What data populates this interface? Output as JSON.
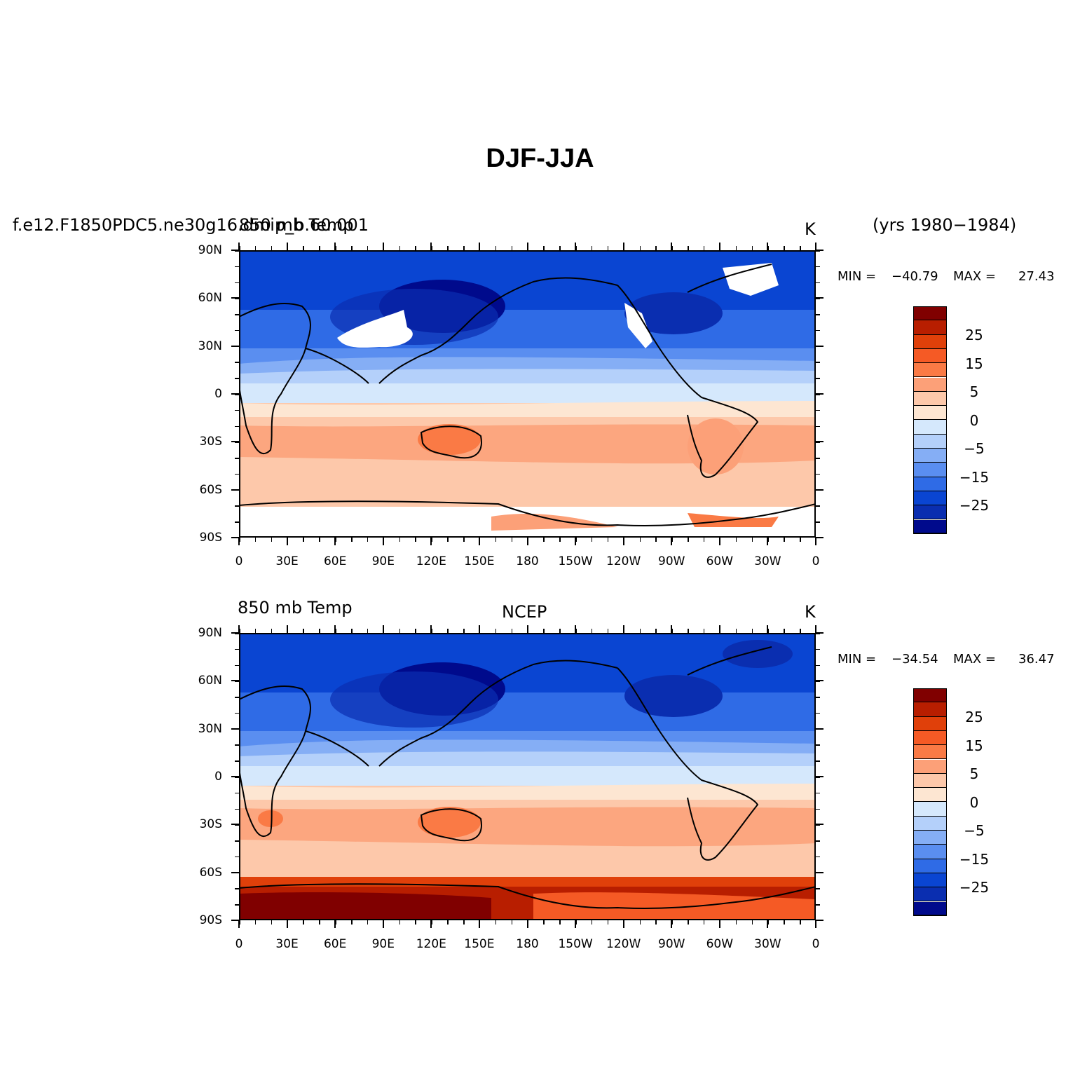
{
  "title": "DJF-JJA",
  "colorbar": {
    "colors": [
      "#800000",
      "#b81e00",
      "#e0400a",
      "#f55a25",
      "#fa7a45",
      "#fca078",
      "#fdc8aa",
      "#fde6d2",
      "#d5e8fc",
      "#b4d0fa",
      "#85aef5",
      "#5a8ef0",
      "#2f6be6",
      "#0a45d2",
      "#0a2eb0",
      "#000a8c"
    ],
    "labels": [
      "25",
      "15",
      "5",
      "0",
      "−5",
      "−15",
      "−25"
    ]
  },
  "axes": {
    "lat_labels": [
      "90N",
      "60N",
      "30N",
      "0",
      "30S",
      "60S",
      "90S"
    ],
    "lon_labels": [
      "0",
      "30E",
      "60E",
      "90E",
      "120E",
      "150E",
      "180",
      "150W",
      "120W",
      "90W",
      "60W",
      "30W",
      "0"
    ]
  },
  "panels": [
    {
      "left_title": "f.e12.F1850PDC5.ne30g16.dmip_b.60.001",
      "left_title_overlay": "850 mb Temp",
      "center_title": "",
      "right_title": "K",
      "years": "(yrs 1980−1984)",
      "min_label": "MIN =",
      "min_value": "−40.79",
      "max_label": "MAX =",
      "max_value": "27.43",
      "missing_antarctica": true
    },
    {
      "left_title": "850 mb Temp",
      "left_title_overlay": "",
      "center_title": "NCEP",
      "right_title": "K",
      "years": "",
      "min_label": "MIN =",
      "min_value": "−34.54",
      "max_label": "MAX =",
      "max_value": "36.47",
      "missing_antarctica": false
    }
  ]
}
